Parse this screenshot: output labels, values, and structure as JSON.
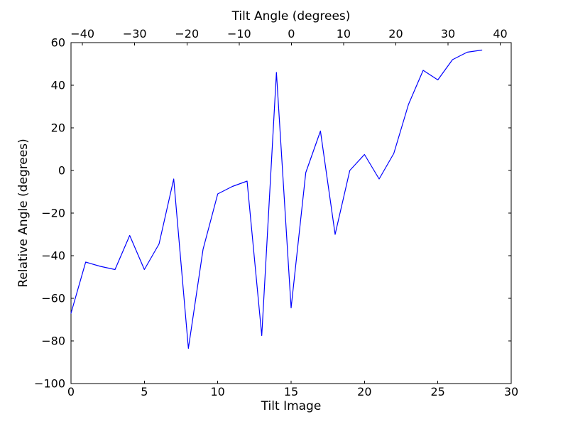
{
  "figure": {
    "background": "#ffffff",
    "axis_color": "#000000",
    "line_color": "#0000ff"
  },
  "chart_data": {
    "type": "line",
    "title": "",
    "grid": false,
    "legend": null,
    "top_axis": {
      "label": "Tilt Angle (degrees)",
      "min": -42.2,
      "max": 42.1,
      "ticks": [
        -40,
        -30,
        -20,
        -10,
        0,
        10,
        20,
        30,
        40
      ]
    },
    "bottom_axis": {
      "label": "Tilt Image",
      "min": 0,
      "max": 30,
      "ticks": [
        0,
        5,
        10,
        15,
        20,
        25,
        30
      ]
    },
    "left_axis": {
      "label": "Relative Angle (degrees)",
      "min": -100,
      "max": 60,
      "ticks": [
        -100,
        -80,
        -60,
        -40,
        -20,
        0,
        20,
        40,
        60
      ]
    },
    "series": [
      {
        "name": "relative-angle",
        "color": "#0000ff",
        "x": [
          0,
          1,
          2,
          3,
          4,
          5,
          6,
          7,
          8,
          9,
          10,
          11,
          12,
          13,
          14,
          15,
          16,
          17,
          18,
          19,
          20,
          21,
          22,
          23,
          24,
          25,
          26,
          27,
          28
        ],
        "y": [
          -67,
          -43,
          -45,
          -46.5,
          -30.5,
          -46.5,
          -34.5,
          -4,
          -83.5,
          -37,
          -11,
          -7.5,
          -5,
          -77.5,
          46,
          -64.5,
          -1,
          18.5,
          -30,
          0,
          7.5,
          -4,
          8,
          31,
          47,
          42.5,
          52,
          55.5,
          56.5
        ]
      }
    ]
  }
}
